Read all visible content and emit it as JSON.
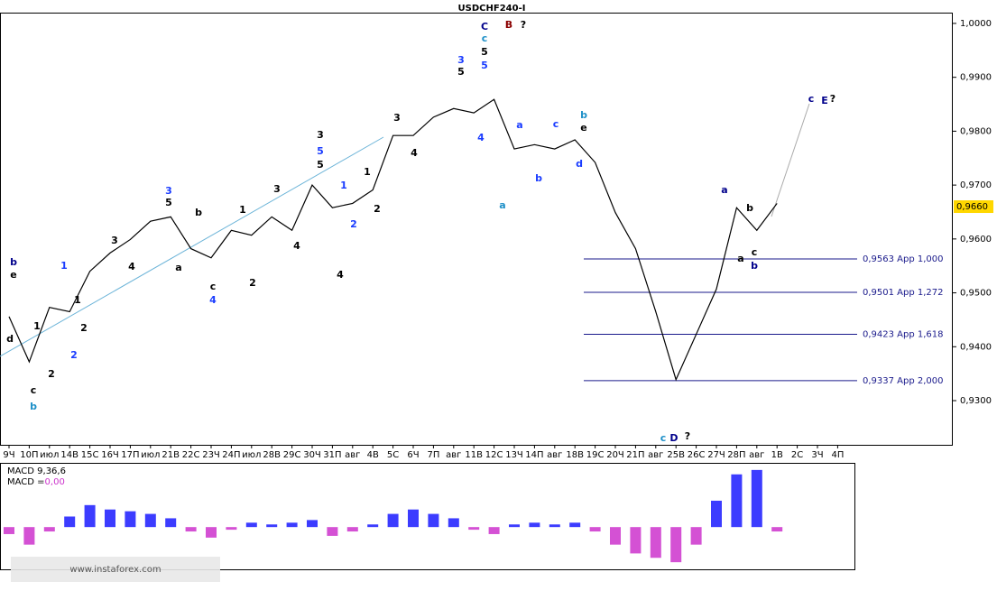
{
  "chart_data": {
    "type": "line",
    "title": "USDCHF240-I",
    "categories": [
      "9Ч",
      "10П",
      "июл",
      "14В",
      "15С",
      "16Ч",
      "17П",
      "июл",
      "21В",
      "22С",
      "23Ч",
      "24П",
      "июл",
      "28В",
      "29С",
      "30Ч",
      "31П",
      "авг",
      "4В",
      "5С",
      "6Ч",
      "7П",
      "авг",
      "11В",
      "12С",
      "13Ч",
      "14П",
      "авг",
      "18В",
      "19С",
      "20Ч",
      "21П",
      "авг",
      "25В",
      "26С",
      "27Ч",
      "28П",
      "авг",
      "1В",
      "2С",
      "3Ч",
      "4П"
    ],
    "series": [
      {
        "name": "USDCHF",
        "color": "#000000",
        "values": [
          0.9456,
          0.9372,
          0.9473,
          0.9465,
          0.954,
          0.9574,
          0.9599,
          0.9633,
          0.9641,
          0.9582,
          0.9565,
          0.9616,
          0.9607,
          0.9641,
          0.9616,
          0.97,
          0.9658,
          0.9666,
          0.9691,
          0.9792,
          0.9792,
          0.9826,
          0.9842,
          0.9834,
          0.9859,
          0.9767,
          0.9775,
          0.9767,
          0.9784,
          0.9742,
          0.9649,
          0.9582,
          0.9465,
          0.9339,
          0.9423,
          0.9507,
          0.9658,
          0.9616,
          0.9666,
          null,
          null,
          null
        ]
      }
    ],
    "ylim": [
      0.9218,
      1.002
    ],
    "yticks": [
      {
        "value": 0.93,
        "label": "0,9300"
      },
      {
        "value": 0.94,
        "label": "0,9400"
      },
      {
        "value": 0.95,
        "label": "0,9500"
      },
      {
        "value": 0.96,
        "label": "0,9600"
      },
      {
        "value": 0.97,
        "label": "0,9700"
      },
      {
        "value": 0.98,
        "label": "0,9800"
      },
      {
        "value": 0.99,
        "label": "0,9900"
      },
      {
        "value": 1.0,
        "label": "1,0000"
      }
    ],
    "current_price": {
      "value": 0.966,
      "label": "0,9660"
    },
    "levels": [
      {
        "value": 0.9563,
        "label": "0,9563 App 1,000"
      },
      {
        "value": 0.9501,
        "label": "0,9501 App 1,272"
      },
      {
        "value": 0.9423,
        "label": "0,9423 App 1,618"
      },
      {
        "value": 0.9337,
        "label": "0,9337 App 2,000"
      }
    ],
    "annotations": [
      {
        "text": "C",
        "color": "#00008b"
      },
      {
        "text": "c",
        "color": "#1e90c8"
      },
      {
        "text": "5",
        "color": "#000000"
      },
      {
        "text": "B",
        "color": "#8b0000"
      },
      {
        "text": "?",
        "color": "#000000"
      },
      {
        "text": "3",
        "color": "#1a3cff"
      },
      {
        "text": "5",
        "color": "#000000"
      },
      {
        "text": "5",
        "color": "#1a3cff"
      },
      {
        "text": "4",
        "color": "#1a3cff"
      },
      {
        "text": "3",
        "color": "#000000"
      },
      {
        "text": "4",
        "color": "#000000"
      },
      {
        "text": "3",
        "color": "#000000"
      },
      {
        "text": "5",
        "color": "#1a3cff"
      },
      {
        "text": "5",
        "color": "#000000"
      },
      {
        "text": "4",
        "color": "#000000"
      },
      {
        "text": "1",
        "color": "#1a3cff"
      },
      {
        "text": "2",
        "color": "#1a3cff"
      },
      {
        "text": "1",
        "color": "#000000"
      },
      {
        "text": "2",
        "color": "#000000"
      },
      {
        "text": "3",
        "color": "#1a3cff"
      },
      {
        "text": "5",
        "color": "#000000"
      },
      {
        "text": "b",
        "color": "#000000"
      },
      {
        "text": "a",
        "color": "#000000"
      },
      {
        "text": "c",
        "color": "#000000"
      },
      {
        "text": "4",
        "color": "#1a3cff"
      },
      {
        "text": "1",
        "color": "#000000"
      },
      {
        "text": "2",
        "color": "#000000"
      },
      {
        "text": "3",
        "color": "#000000"
      },
      {
        "text": "4",
        "color": "#000000"
      },
      {
        "text": "3",
        "color": "#000000"
      },
      {
        "text": "4",
        "color": "#000000"
      },
      {
        "text": "1",
        "color": "#1a3cff"
      },
      {
        "text": "1",
        "color": "#000000"
      },
      {
        "text": "2",
        "color": "#000000"
      },
      {
        "text": "2",
        "color": "#1a3cff"
      },
      {
        "text": "b",
        "color": "#00008b"
      },
      {
        "text": "e",
        "color": "#000000"
      },
      {
        "text": "d",
        "color": "#000000"
      },
      {
        "text": "1",
        "color": "#000000"
      },
      {
        "text": "2",
        "color": "#000000"
      },
      {
        "text": "c",
        "color": "#000000"
      },
      {
        "text": "b",
        "color": "#1e90c8"
      },
      {
        "text": "a",
        "color": "#1e90c8"
      },
      {
        "text": "a",
        "color": "#1a3cff"
      },
      {
        "text": "c",
        "color": "#1a3cff"
      },
      {
        "text": "b",
        "color": "#1e90c8"
      },
      {
        "text": "e",
        "color": "#000000"
      },
      {
        "text": "b",
        "color": "#1a3cff"
      },
      {
        "text": "d",
        "color": "#1a3cff"
      },
      {
        "text": "c",
        "color": "#1e90c8"
      },
      {
        "text": "D",
        "color": "#00008b"
      },
      {
        "text": "?",
        "color": "#000000"
      },
      {
        "text": "a",
        "color": "#00008b"
      },
      {
        "text": "b",
        "color": "#000000"
      },
      {
        "text": "a",
        "color": "#000000"
      },
      {
        "text": "c",
        "color": "#000000"
      },
      {
        "text": "b",
        "color": "#00008b"
      },
      {
        "text": "c",
        "color": "#00008b"
      },
      {
        "text": "E",
        "color": "#00008b"
      },
      {
        "text": "?",
        "color": "#000000"
      }
    ],
    "macd": {
      "label": "MACD 9,36,6",
      "signal_label": "MACD =",
      "signal_value": "0,00",
      "positive_color": "#1a1aff",
      "negative_color": "#cc33cc",
      "ylim": [
        -45,
        70
      ],
      "values": [
        -8,
        -20,
        -5,
        12,
        25,
        20,
        18,
        15,
        10,
        -5,
        -12,
        -3,
        5,
        3,
        5,
        8,
        -10,
        -5,
        3,
        15,
        20,
        15,
        10,
        -3,
        -8,
        3,
        5,
        3,
        5,
        -5,
        -20,
        -30,
        -35,
        -40,
        -20,
        30,
        60,
        65,
        -5
      ]
    },
    "watermark": "www.instaforex.com"
  }
}
